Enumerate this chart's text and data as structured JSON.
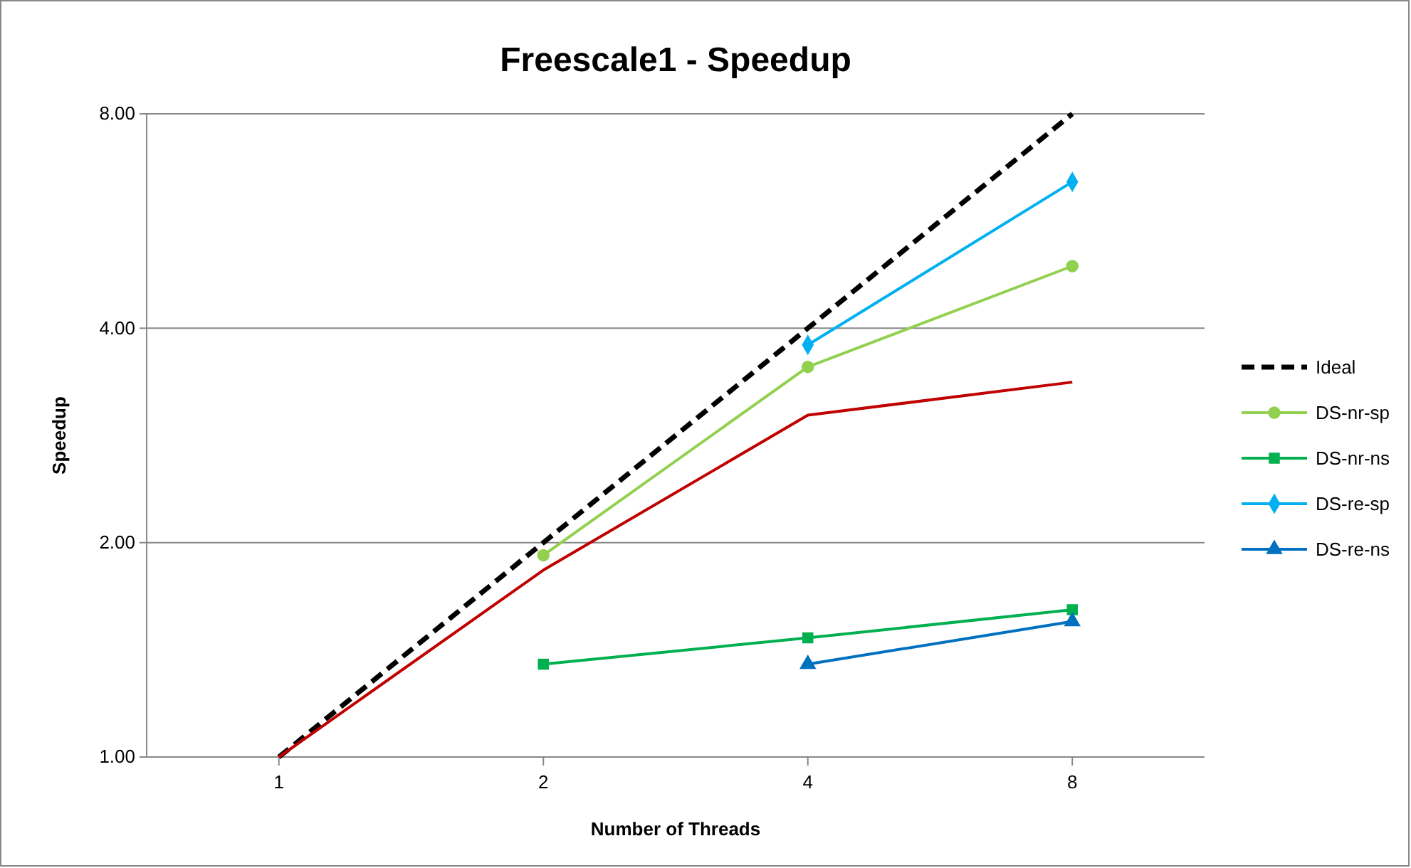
{
  "chart_data": {
    "type": "line",
    "title": "Freescale1 - Speedup",
    "xlabel": "Number of Threads",
    "ylabel": "Speedup",
    "categories": [
      "1",
      "2",
      "4",
      "8"
    ],
    "log": true,
    "ylim": [
      1,
      8
    ],
    "yticks": [
      {
        "value": 1,
        "label": "1.00"
      },
      {
        "value": 2,
        "label": "2.00"
      },
      {
        "value": 4,
        "label": "4.00"
      },
      {
        "value": 8,
        "label": "8.00"
      }
    ],
    "grid": "y",
    "legend": "right",
    "series": [
      {
        "name": "Ideal",
        "color": "#000000",
        "values": [
          1,
          2,
          4,
          8
        ],
        "line_style": "dashed",
        "marker": "none"
      },
      {
        "color": "#c00000",
        "values": [
          1,
          1.83,
          3.02,
          3.36
        ],
        "line_style": "solid",
        "marker": "none"
      },
      {
        "name": "DS-nr-sp",
        "color": "#92d050",
        "values": [
          null,
          1.92,
          3.53,
          4.89
        ],
        "line_style": "solid",
        "marker": "circle"
      },
      {
        "name": "DS-nr-ns",
        "color": "#00b050",
        "values": [
          null,
          1.35,
          1.47,
          1.61
        ],
        "line_style": "solid",
        "marker": "square"
      },
      {
        "name": "DS-re-sp",
        "color": "#00b0f0",
        "values": [
          null,
          null,
          3.79,
          6.42
        ],
        "line_style": "solid",
        "marker": "diamond"
      },
      {
        "name": "DS-re-ns",
        "color": "#0070c0",
        "values": [
          null,
          null,
          1.35,
          1.55
        ],
        "line_style": "solid",
        "marker": "triangle"
      }
    ]
  }
}
